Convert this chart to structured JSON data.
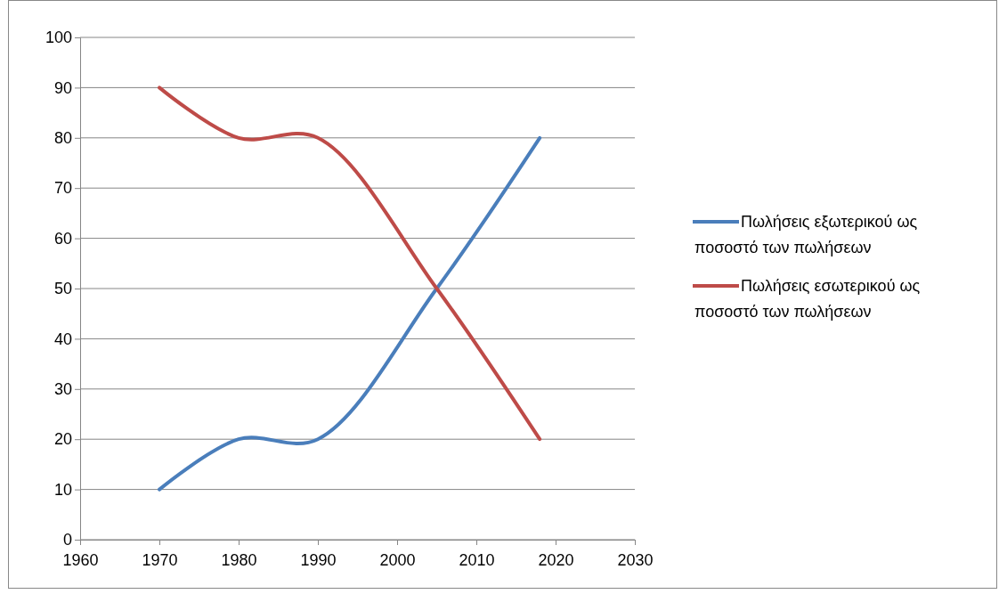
{
  "chart_data": {
    "type": "line",
    "x": [
      1970,
      1980,
      1990,
      2005,
      2018
    ],
    "series": [
      {
        "name": "Πωλήσεις εξωτερικού ως ποσοστό των πωλήσεων",
        "color": "#4a7ebb",
        "values": [
          10,
          20,
          20,
          50,
          80
        ]
      },
      {
        "name": "Πωλήσεις εσωτερικού ως ποσοστό των πωλήσεων",
        "color": "#be4b48",
        "values": [
          90,
          80,
          80,
          50,
          20
        ]
      }
    ],
    "xlim": [
      1960,
      2030
    ],
    "xticks": [
      1960,
      1970,
      1980,
      1990,
      2000,
      2010,
      2020,
      2030
    ],
    "ylim": [
      0,
      100
    ],
    "yticks": [
      0,
      10,
      20,
      30,
      40,
      50,
      60,
      70,
      80,
      90,
      100
    ],
    "grid": "y",
    "legend": "right",
    "marker": "none",
    "line_style": "solid"
  }
}
